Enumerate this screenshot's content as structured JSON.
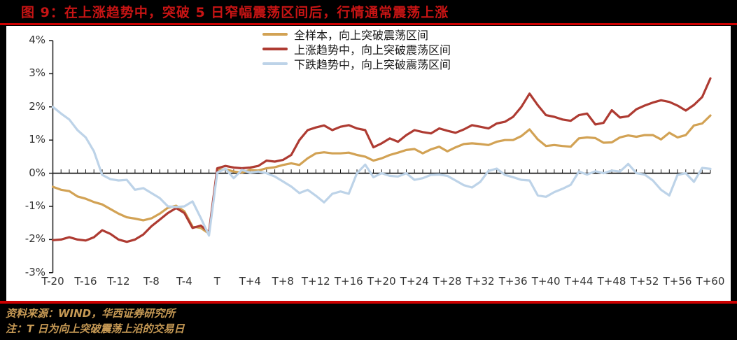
{
  "title": "图 9：在上涨趋势中，突破 5 日窄幅震荡区间后，行情通常震荡上涨",
  "footer": {
    "source": "资料来源：WIND，华西证券研究所",
    "note": "注：T 日为向上突破震荡上沿的交易日"
  },
  "colors": {
    "frame_background": "#000000",
    "divider_red": "#CC0000",
    "title_red": "#C81414",
    "footer_gold": "#C79A55",
    "panel_background": "#FFFFFF",
    "axis_black": "#1a1a1a",
    "tick_label_gray": "#333333"
  },
  "chart_data": {
    "type": "line",
    "title": "",
    "xlabel": "",
    "ylabel": "",
    "ylim": [
      -3,
      4
    ],
    "grid": false,
    "legend_position": "top-center",
    "y_ticks": [
      "4%",
      "3%",
      "2%",
      "1%",
      "0%",
      "-1%",
      "-2%",
      "-3%"
    ],
    "x_ticks": [
      "T-20",
      "T-16",
      "T-12",
      "T-8",
      "T-4",
      "T",
      "T+4",
      "T+8",
      "T+12",
      "T+16",
      "T+20",
      "T+24",
      "T+28",
      "T+32",
      "T+36",
      "T+40",
      "T+44",
      "T+48",
      "T+52",
      "T+56",
      "T+60"
    ],
    "x_tick_every": 4,
    "n_points": 81,
    "series": [
      {
        "key": "full-sample",
        "name": "全样本，向上突破震荡区间",
        "color": "#D2A254",
        "values": [
          -0.41,
          -0.5,
          -0.54,
          -0.7,
          -0.77,
          -0.87,
          -0.94,
          -1.08,
          -1.22,
          -1.33,
          -1.37,
          -1.42,
          -1.36,
          -1.22,
          -1.04,
          -0.98,
          -1.15,
          -1.61,
          -1.65,
          -1.82,
          0.1,
          0.12,
          0.05,
          0.02,
          0.1,
          0.08,
          0.15,
          0.18,
          0.25,
          0.3,
          0.25,
          0.45,
          0.6,
          0.63,
          0.6,
          0.6,
          0.62,
          0.55,
          0.5,
          0.38,
          0.45,
          0.55,
          0.62,
          0.7,
          0.73,
          0.6,
          0.72,
          0.8,
          0.66,
          0.78,
          0.88,
          0.9,
          0.88,
          0.85,
          0.95,
          1.0,
          1.0,
          1.12,
          1.32,
          1.02,
          0.82,
          0.85,
          0.82,
          0.8,
          1.05,
          1.08,
          1.06,
          0.92,
          0.93,
          1.08,
          1.14,
          1.1,
          1.15,
          1.15,
          1.02,
          1.22,
          1.08,
          1.15,
          1.44,
          1.5,
          1.74
        ]
      },
      {
        "key": "uptrend",
        "name": "上涨趋势中，向上突破震荡区间",
        "color": "#AE3B32",
        "values": [
          -2.02,
          -2.0,
          -1.93,
          -2.0,
          -2.03,
          -1.93,
          -1.72,
          -1.83,
          -2.0,
          -2.07,
          -2.0,
          -1.85,
          -1.6,
          -1.4,
          -1.2,
          -1.05,
          -1.2,
          -1.65,
          -1.58,
          -1.78,
          0.15,
          0.22,
          0.17,
          0.15,
          0.17,
          0.22,
          0.38,
          0.35,
          0.4,
          0.55,
          1.0,
          1.3,
          1.38,
          1.44,
          1.3,
          1.4,
          1.45,
          1.35,
          1.3,
          0.78,
          0.9,
          1.05,
          0.95,
          1.15,
          1.3,
          1.24,
          1.2,
          1.35,
          1.28,
          1.22,
          1.32,
          1.45,
          1.4,
          1.35,
          1.5,
          1.55,
          1.7,
          2.0,
          2.4,
          2.05,
          1.75,
          1.7,
          1.62,
          1.58,
          1.75,
          1.8,
          1.47,
          1.52,
          1.9,
          1.68,
          1.72,
          1.93,
          2.04,
          2.13,
          2.2,
          2.15,
          2.04,
          1.89,
          2.06,
          2.3,
          2.86
        ]
      },
      {
        "key": "downtrend",
        "name": "下跌趋势中，向上突破震荡区间",
        "color": "#BDD3E8",
        "values": [
          2.0,
          1.8,
          1.62,
          1.3,
          1.08,
          0.66,
          -0.05,
          -0.18,
          -0.22,
          -0.2,
          -0.5,
          -0.45,
          -0.6,
          -0.75,
          -1.0,
          -1.02,
          -1.0,
          -0.85,
          -1.35,
          -1.88,
          0.02,
          0.14,
          -0.15,
          0.1,
          0.02,
          0.05,
          0.0,
          -0.1,
          -0.25,
          -0.4,
          -0.6,
          -0.5,
          -0.68,
          -0.88,
          -0.62,
          -0.55,
          -0.62,
          0.0,
          0.26,
          -0.12,
          0.0,
          -0.08,
          -0.1,
          0.0,
          -0.2,
          -0.15,
          -0.05,
          -0.04,
          -0.08,
          -0.22,
          -0.36,
          -0.43,
          -0.26,
          0.07,
          0.14,
          -0.05,
          -0.12,
          -0.2,
          -0.22,
          -0.67,
          -0.71,
          -0.57,
          -0.47,
          -0.35,
          0.05,
          -0.04,
          0.06,
          0.0,
          0.08,
          0.05,
          0.28,
          0.0,
          -0.04,
          -0.22,
          -0.5,
          -0.67,
          -0.05,
          0.0,
          -0.26,
          0.16,
          0.13
        ]
      }
    ]
  }
}
